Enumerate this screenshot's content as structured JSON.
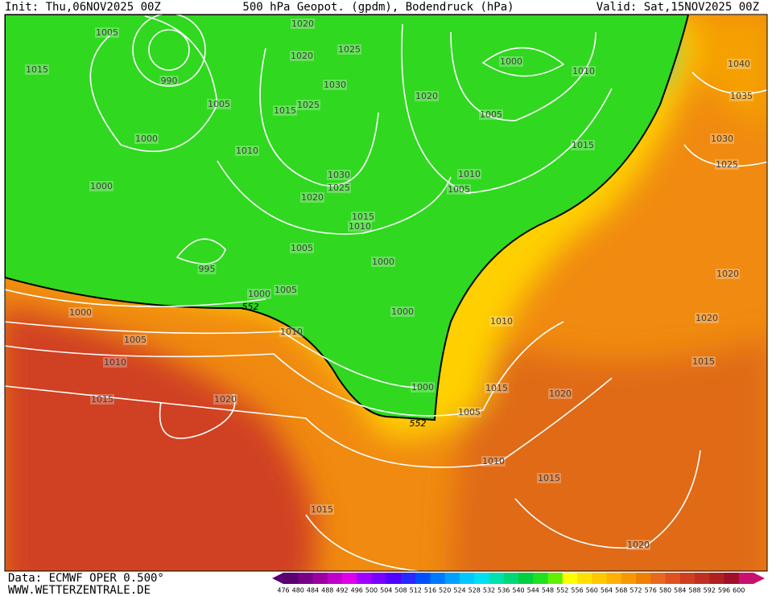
{
  "header": {
    "init": "Init: Thu,06NOV2025 00Z",
    "title": "500 hPa Geopot. (gpdm), Bodendruck (hPa)",
    "valid": "Valid: Sat,15NOV2025 00Z"
  },
  "footer": {
    "source": "Data: ECMWF OPER 0.500°",
    "site": "WWW.WETTERZENTRALE.DE"
  },
  "isobar_labels": [
    1005,
    1015,
    990,
    1005,
    1000,
    1000,
    995,
    1000,
    1005,
    1010,
    1015,
    1020,
    1000,
    1005,
    1010,
    1020,
    1020,
    1025,
    1030,
    1015,
    1025,
    1010,
    1030,
    1025,
    1020,
    1015,
    1010,
    1005,
    1000,
    1020,
    1000,
    1010,
    1005,
    1015,
    1010,
    1005,
    1000,
    1000,
    1010,
    1015,
    1020,
    1005,
    1010,
    1015,
    1015,
    1020,
    1040,
    1035,
    1030,
    1025,
    1020,
    1020,
    1015
  ],
  "contour_labels": [
    552,
    552
  ],
  "colorbar": {
    "ticks": [
      476,
      480,
      484,
      488,
      492,
      496,
      500,
      504,
      508,
      512,
      516,
      520,
      524,
      528,
      532,
      536,
      540,
      544,
      548,
      552,
      556,
      560,
      564,
      568,
      572,
      576,
      580,
      584,
      588,
      592,
      596,
      600
    ],
    "colors": [
      "#5a0070",
      "#780088",
      "#9a00a0",
      "#c000c8",
      "#e000e8",
      "#a000ff",
      "#7800ff",
      "#5000ff",
      "#2828ff",
      "#0050ff",
      "#0078ff",
      "#00a0ff",
      "#00c8ff",
      "#00e0f0",
      "#00e0b0",
      "#00d878",
      "#00d040",
      "#20e020",
      "#60f000",
      "#ffff00",
      "#ffe000",
      "#ffc800",
      "#ffb000",
      "#f89800",
      "#f08000",
      "#e86820",
      "#e05020",
      "#d04020",
      "#c03020",
      "#b02020",
      "#a01028",
      "#c81070"
    ]
  }
}
